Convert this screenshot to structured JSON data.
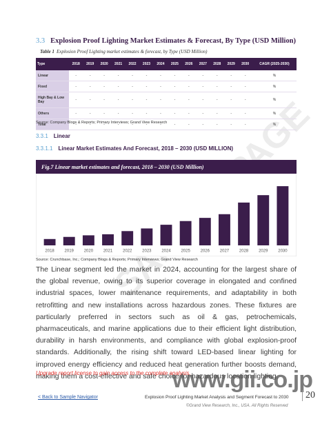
{
  "section": {
    "number": "3.3",
    "title": "Explosion Proof Lighting Market Estimates & Forecast, By Type (USD Million)"
  },
  "table": {
    "caption_label": "Table 1",
    "caption": "Explosion Proof Lighting market estimates & forecast, by Type (USD Million)",
    "header": [
      "Type",
      "2018",
      "2019",
      "2020",
      "2021",
      "2022",
      "2023",
      "2024",
      "2025",
      "2026",
      "2027",
      "2028",
      "2029",
      "2030",
      "CAGR (2025-2030)"
    ],
    "rows": [
      [
        "Linear",
        "-",
        "-",
        "-",
        "-",
        "-",
        "-",
        "-",
        "-",
        "-",
        "-",
        "-",
        "-",
        "-",
        "%"
      ],
      [
        "Fixed",
        "-",
        "-",
        "-",
        "-",
        "-",
        "-",
        "-",
        "-",
        "-",
        "-",
        "-",
        "-",
        "-",
        "%"
      ],
      [
        "High Bay & Low Bay",
        "-",
        "-",
        "-",
        "-",
        "-",
        "-",
        "-",
        "-",
        "-",
        "-",
        "-",
        "-",
        "-",
        "%"
      ],
      [
        "Others",
        "-",
        "-",
        "-",
        "-",
        "-",
        "-",
        "-",
        "-",
        "-",
        "-",
        "-",
        "-",
        "-",
        "%"
      ],
      [
        "Total",
        "-",
        "-",
        "-",
        "-",
        "-",
        "-",
        "-",
        "-",
        "-",
        "-",
        "-",
        "-",
        "-",
        "%"
      ]
    ],
    "source": "Source: Company Blogs & Reports; Primary Interviews; Grand View Research"
  },
  "subsection": {
    "number": "3.3.1",
    "title": "Linear"
  },
  "subsubsection": {
    "number": "3.3.1.1",
    "title": "Linear Market Estimates And Forecast, 2018 – 2030 (USD MILLION)"
  },
  "chart_data": {
    "type": "bar",
    "title": "Fig.7  Linear market estimates and forecast, 2018 – 2030 (USD Million)",
    "categories": [
      "2018",
      "2019",
      "2020",
      "2021",
      "2022",
      "2023",
      "2024",
      "2025",
      "2026",
      "2027",
      "2028",
      "2029",
      "2030"
    ],
    "values": [
      12,
      16,
      19,
      21,
      27,
      32,
      39,
      46,
      52,
      59,
      81,
      95,
      112
    ],
    "color": "#3b1d4b",
    "ylim": [
      0,
      120
    ]
  },
  "chart_source": "Source: Crunchbase, Inc.; Company Blogs & Reports; Primary Interviews; Grand View Research",
  "paragraph": "The Linear segment led the market in 2024, accounting for the largest share of the global revenue, owing to its superior coverage in elongated and confined industrial spaces, lower maintenance requirements, and adaptability in both retrofitting and new installations across hazardous zones. These fixtures are particularly preferred in sectors such as oil & gas, petrochemicals, pharmaceuticals, and marine applications due to their efficient light distribution, durability in harsh environments, and compliance with global explosion-proof standards. Additionally, the rising shift toward LED-based linear lighting for improved energy efficiency and reduced heat generation further boosts demand, making them a cost-effective and safe choice for hazardous location lighting.",
  "note": "Upgrade report license to gain access to the complete analysis.",
  "footer": {
    "back_link": "< Back to Sample Navigator",
    "title": "Explosion Proof Lighting Market Analysis and Segment Forecast to 2030",
    "page": "20",
    "copyright": "©Grand View Research, Inc., USA. All Rights Reserved"
  },
  "watermark": {
    "text": "SAMPLE PAGE",
    "site": "www.gii.co.jp"
  }
}
